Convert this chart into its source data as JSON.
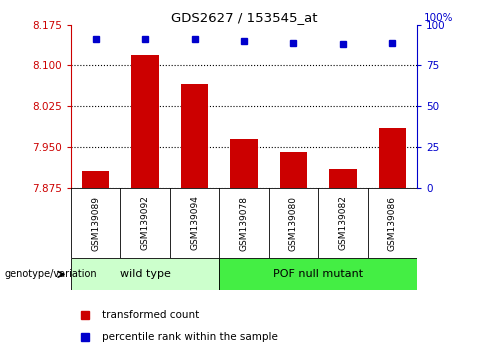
{
  "title": "GDS2627 / 153545_at",
  "samples": [
    "GSM139089",
    "GSM139092",
    "GSM139094",
    "GSM139078",
    "GSM139080",
    "GSM139082",
    "GSM139086"
  ],
  "bar_values": [
    7.905,
    8.12,
    8.065,
    7.965,
    7.94,
    7.91,
    7.985
  ],
  "percentile_values": [
    91,
    91,
    91,
    90,
    89,
    88,
    89
  ],
  "ylim_left": [
    7.875,
    8.175
  ],
  "ylim_right": [
    0,
    100
  ],
  "yticks_left": [
    7.875,
    7.95,
    8.025,
    8.1,
    8.175
  ],
  "yticks_right": [
    0,
    25,
    50,
    75,
    100
  ],
  "bar_color": "#cc0000",
  "dot_color": "#0000cc",
  "n_wild": 3,
  "n_mutant": 4,
  "wild_type_label": "wild type",
  "mutant_label": "POF null mutant",
  "group_label": "genotype/variation",
  "legend_bar_label": "transformed count",
  "legend_dot_label": "percentile rank within the sample",
  "tick_color_left": "#cc0000",
  "tick_color_right": "#0000cc",
  "bg_color": "#ffffff",
  "plot_bg": "#ffffff",
  "wild_type_bg": "#ccffcc",
  "mutant_bg": "#44ee44",
  "sample_label_bg": "#d0d0d0"
}
